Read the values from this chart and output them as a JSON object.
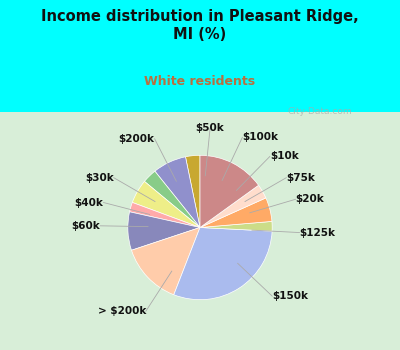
{
  "title": "Income distribution in Pleasant Ridge,\nMI (%)",
  "subtitle": "White residents",
  "title_color": "#111111",
  "subtitle_color": "#b87040",
  "bg_top_color": "#00ffff",
  "chart_bg_color_top": "#e0f5f0",
  "chart_bg_color_bot": "#e8f5e0",
  "labels": [
    "$50k",
    "$100k",
    "$10k",
    "$75k",
    "$20k",
    "$125k",
    "$150k",
    "> $200k",
    "$60k",
    "$40k",
    "$30k",
    "$200k"
  ],
  "values": [
    3,
    7,
    3,
    5,
    2,
    8,
    13,
    28,
    2,
    5,
    3,
    14
  ],
  "colors": [
    "#c8a830",
    "#9090cc",
    "#88cc88",
    "#eeee88",
    "#ffaaaa",
    "#8888bb",
    "#ffccaa",
    "#aabbee",
    "#ccdd88",
    "#ffaa66",
    "#ffddcc",
    "#cc8888"
  ],
  "startangle": 90,
  "label_fontsize": 7.5
}
